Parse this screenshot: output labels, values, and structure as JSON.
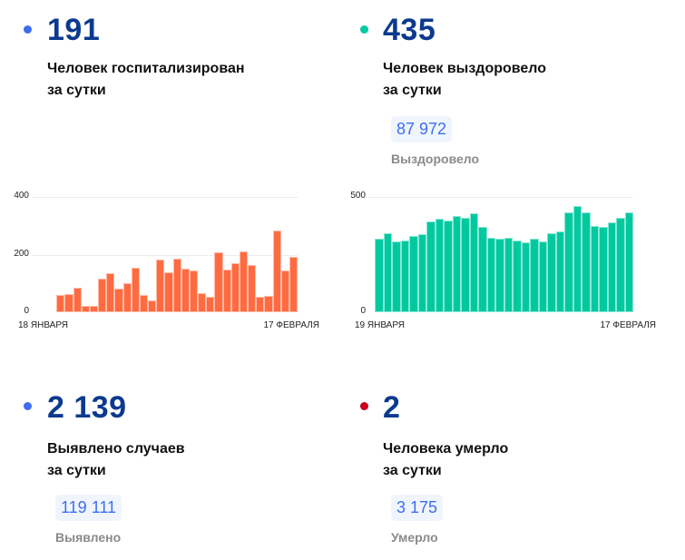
{
  "colors": {
    "blue": "#3d6ef0",
    "teal": "#00c9a0",
    "red": "#c8001e",
    "orange": "#ff6b40",
    "number": "#0b3a8e"
  },
  "cards": [
    {
      "value": "191",
      "label_1": "Человек госпитализирован",
      "label_2": "за сутки",
      "dot": "blue"
    },
    {
      "value": "435",
      "label_1": "Человек выздоровело",
      "label_2": "за сутки",
      "total": "87 972",
      "total_label": "Выздоровело",
      "dot": "teal"
    },
    {
      "value": "2 139",
      "label_1": "Выявлено случаев",
      "label_2": "за сутки",
      "total": "119 111",
      "total_label": "Выявлено",
      "dot": "blue"
    },
    {
      "value": "2",
      "label_1": "Человека умерло",
      "label_2": "за сутки",
      "total": "3 175",
      "total_label": "Умерло",
      "dot": "red"
    }
  ],
  "chart_data": [
    {
      "type": "bar",
      "color": "#ff6b40",
      "x_start_label": "18 ЯНВАРЯ",
      "x_end_label": "17 ФЕВРАЛЯ",
      "yticks": [
        "0",
        "200",
        "400"
      ],
      "ylim": [
        0,
        400
      ],
      "grid": true,
      "values": [
        null,
        null,
        61,
        64,
        85,
        21,
        22,
        115,
        135,
        81,
        100,
        153,
        61,
        40,
        182,
        140,
        185,
        152,
        146,
        66,
        53,
        208,
        148,
        169,
        210,
        163,
        54,
        56,
        282,
        145,
        191
      ]
    },
    {
      "type": "bar",
      "color": "#00c9a0",
      "x_start_label": "19 ЯНВАРЯ",
      "x_end_label": "17 ФЕВРАЛЯ",
      "yticks": [
        "0",
        "500"
      ],
      "ylim": [
        0,
        500
      ],
      "grid": true,
      "values": [
        320,
        342,
        308,
        312,
        329,
        338,
        392,
        406,
        397,
        419,
        411,
        428,
        372,
        324,
        317,
        321,
        311,
        303,
        320,
        307,
        342,
        351,
        433,
        461,
        433,
        375,
        369,
        389,
        411,
        435
      ]
    }
  ]
}
